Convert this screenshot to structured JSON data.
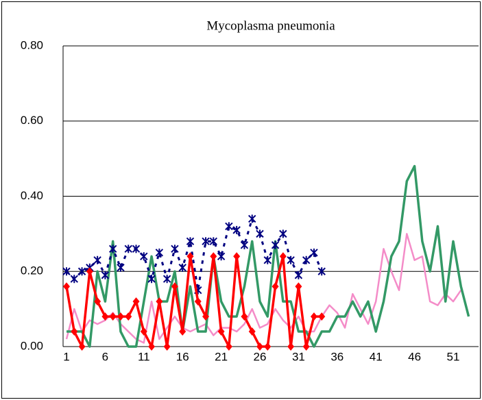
{
  "chart_data": {
    "type": "line",
    "title": "Mycoplasma pneumonia",
    "categories": [
      "1",
      null,
      null,
      null,
      null,
      "6",
      null,
      null,
      null,
      null,
      "11",
      null,
      null,
      null,
      null,
      "16",
      null,
      null,
      null,
      null,
      "21",
      null,
      null,
      null,
      null,
      "26",
      null,
      null,
      null,
      null,
      "31",
      null,
      null,
      null,
      null,
      "36",
      null,
      null,
      null,
      null,
      "41",
      null,
      null,
      null,
      null,
      "46",
      null,
      null,
      null,
      null,
      "51",
      null,
      null
    ],
    "ylim": [
      0,
      0.8
    ],
    "yticks": [
      {
        "value": 0,
        "label": "0.00"
      },
      {
        "value": 0.2,
        "label": "0.20"
      },
      {
        "value": 0.4,
        "label": "0.40"
      },
      {
        "value": 0.6,
        "label": "0.60"
      },
      {
        "value": 0.8,
        "label": "0.80"
      }
    ],
    "grid": true,
    "series": [
      {
        "color": "#f48cc8",
        "style": "solid",
        "values": [
          0.02,
          0.1,
          0.04,
          0.07,
          0.06,
          0.07,
          0.09,
          0.06,
          0.04,
          0.02,
          0.01,
          0.12,
          0.02,
          0.05,
          0.08,
          0.05,
          0.04,
          0.05,
          0.06,
          0.03,
          0.05,
          0.05,
          0.04,
          0.06,
          0.1,
          0.05,
          0.06,
          0.1,
          0.07,
          0.05,
          0.08,
          0.04,
          0.04,
          0.08,
          0.11,
          0.09,
          0.05,
          0.14,
          0.1,
          0.06,
          0.12,
          0.26,
          0.2,
          0.15,
          0.3,
          0.23,
          0.24,
          0.12,
          0.11,
          0.14,
          0.12,
          0.15,
          null
        ]
      },
      {
        "color": "#339966",
        "style": "solid",
        "values": [
          0.04,
          0.04,
          0.04,
          0.0,
          0.2,
          0.12,
          0.28,
          0.04,
          0.0,
          0.0,
          0.12,
          0.24,
          0.12,
          0.12,
          0.2,
          0.04,
          0.16,
          0.04,
          0.04,
          0.24,
          0.12,
          0.08,
          0.08,
          0.16,
          0.28,
          0.12,
          0.08,
          0.28,
          0.12,
          0.12,
          0.04,
          0.04,
          0.0,
          0.04,
          0.04,
          0.08,
          0.08,
          0.12,
          0.08,
          0.12,
          0.04,
          0.12,
          0.24,
          0.28,
          0.44,
          0.48,
          0.28,
          0.2,
          0.32,
          0.12,
          0.28,
          0.16,
          0.08
        ]
      },
      {
        "color": "#000080",
        "style": "dashed",
        "marker": "asterisk",
        "values": [
          0.2,
          0.18,
          0.2,
          0.21,
          0.23,
          0.19,
          0.26,
          0.21,
          0.26,
          0.26,
          0.24,
          0.18,
          0.25,
          0.18,
          0.26,
          0.21,
          0.28,
          0.15,
          0.28,
          0.28,
          0.24,
          0.32,
          0.31,
          0.27,
          0.34,
          0.3,
          0.23,
          0.27,
          0.3,
          0.23,
          0.19,
          0.23,
          0.25,
          0.2,
          null,
          null,
          null,
          null,
          null,
          null,
          null,
          null,
          null,
          null,
          null,
          null,
          null,
          null,
          null,
          null,
          null,
          null,
          null
        ]
      },
      {
        "color": "#ff0000",
        "style": "solid",
        "marker": "diamond",
        "values": [
          0.16,
          0.04,
          0.0,
          0.2,
          0.12,
          0.08,
          0.08,
          0.08,
          0.08,
          0.12,
          0.04,
          0.0,
          0.12,
          0.0,
          0.16,
          0.04,
          0.24,
          0.12,
          0.08,
          0.24,
          0.04,
          0.0,
          0.24,
          0.08,
          0.04,
          0.0,
          0.0,
          0.16,
          0.24,
          0.0,
          0.16,
          0.0,
          0.08,
          0.08,
          null,
          null,
          null,
          null,
          null,
          null,
          null,
          null,
          null,
          null,
          null,
          null,
          null,
          null,
          null,
          null,
          null,
          null,
          null
        ]
      }
    ]
  }
}
